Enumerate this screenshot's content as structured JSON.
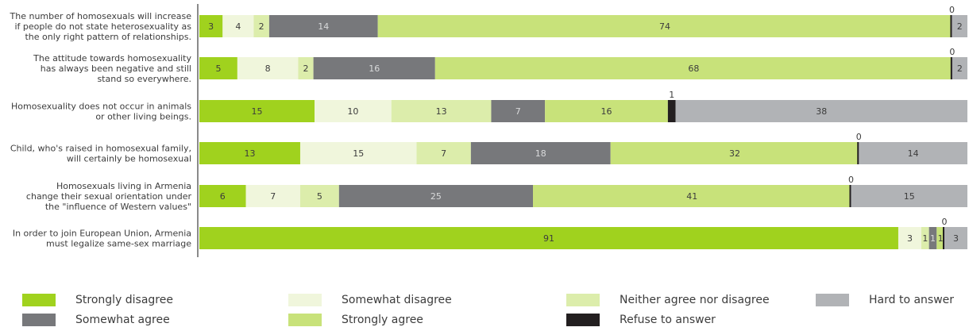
{
  "chart_data": {
    "type": "bar",
    "orientation": "horizontal",
    "stacked": true,
    "categories": [
      [
        "The number of homosexuals will increase",
        "if people do not state heterosexuality as",
        "the only right pattern of relationships."
      ],
      [
        "The attitude towards homosexuality",
        "has always been negative and still",
        "stand so everywhere."
      ],
      [
        "Homosexuality does not occur in animals",
        "or other living beings."
      ],
      [
        "Child, who's raised in homosexual family,",
        "will certainly be homosexual"
      ],
      [
        "Homosexuals living in Armenia",
        "change their sexual orientation under",
        "the \"influence of Western values\""
      ],
      [
        "In order to join European Union, Armenia",
        "must legalize same-sex marriage"
      ]
    ],
    "series": [
      {
        "name": "Strongly disagree",
        "color": "#a0d21e",
        "values": [
          3,
          5,
          15,
          13,
          6,
          91
        ]
      },
      {
        "name": "Somewhat disagree",
        "color": "#f0f6dc",
        "values": [
          4,
          8,
          10,
          15,
          7,
          3
        ]
      },
      {
        "name": "Neither agree nor disagree",
        "color": "#dcedab",
        "values": [
          2,
          2,
          13,
          7,
          5,
          1
        ]
      },
      {
        "name": "Somewhat agree",
        "color": "#77787b",
        "values": [
          14,
          16,
          7,
          18,
          25,
          1
        ]
      },
      {
        "name": "Strongly agree",
        "color": "#c8e27a",
        "values": [
          74,
          68,
          16,
          32,
          41,
          1
        ]
      },
      {
        "name": "Refuse to answer",
        "color": "#231f20",
        "values": [
          0,
          0,
          1,
          0,
          0,
          0
        ]
      },
      {
        "name": "Hard to answer",
        "color": "#b1b3b6",
        "values": [
          2,
          2,
          38,
          14,
          15,
          3
        ]
      }
    ],
    "legend_position": "bottom",
    "grid": false
  }
}
